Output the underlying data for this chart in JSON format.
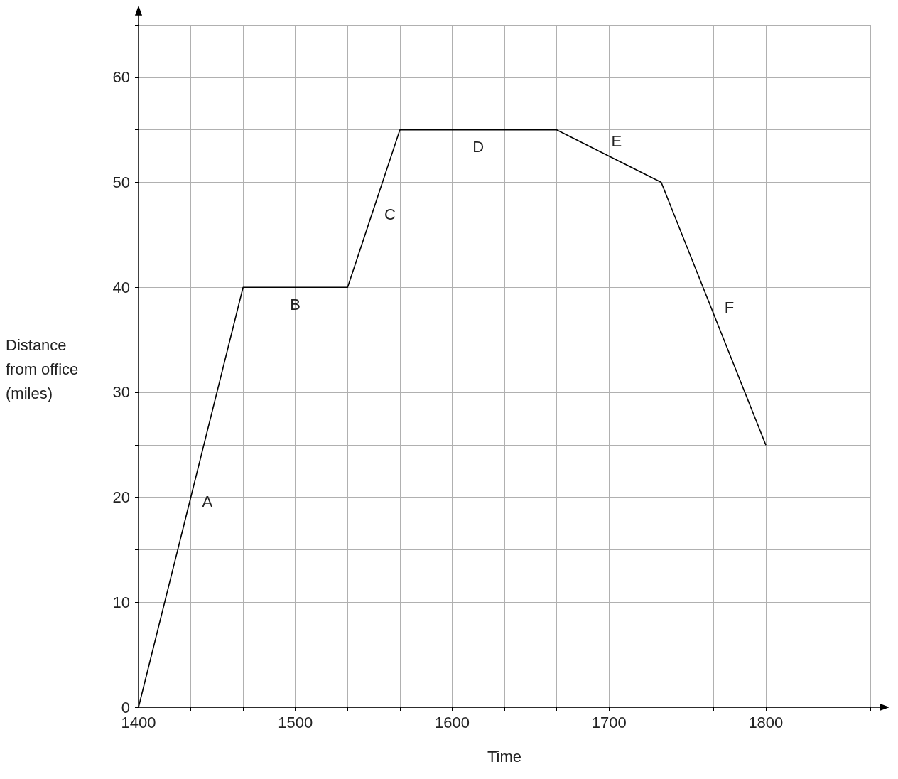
{
  "chart_data": {
    "type": "line",
    "xlabel": "Time",
    "ylabel": "Distance from office (miles)",
    "x": [
      1400,
      1466.67,
      1533.33,
      1566.67,
      1666.67,
      1733.33,
      1800
    ],
    "series": [
      {
        "color": "#000000",
        "values": [
          0,
          40,
          40,
          55,
          55,
          50,
          25
        ]
      }
    ],
    "marker": "none",
    "line_style": "solid",
    "grid": true,
    "xlim": [
      1400,
      1866.67
    ],
    "xticks": [
      1400,
      {
        "value": 1433.33,
        "label": null
      },
      {
        "value": 1466.67,
        "label": null
      },
      1500,
      {
        "value": 1533.33,
        "label": null
      },
      {
        "value": 1566.67,
        "label": null
      },
      1600,
      {
        "value": 1633.33,
        "label": null
      },
      {
        "value": 1666.67,
        "label": null
      },
      1700,
      {
        "value": 1733.33,
        "label": null
      },
      {
        "value": 1766.67,
        "label": null
      },
      1800,
      {
        "value": 1833.33,
        "label": null
      },
      {
        "value": 1866.67,
        "label": null
      }
    ],
    "ylim": [
      0,
      65
    ],
    "yticks": [
      0,
      {
        "value": 5,
        "label": null
      },
      10,
      {
        "value": 15,
        "label": null
      },
      20,
      {
        "value": 25,
        "label": null
      },
      30,
      {
        "value": 35,
        "label": null
      },
      40,
      {
        "value": 45,
        "label": null
      },
      50,
      {
        "value": 55,
        "label": null
      },
      60,
      {
        "value": 65,
        "label": null
      }
    ],
    "annotations": [
      "A",
      "B",
      "C",
      "D",
      "E",
      "F"
    ]
  }
}
